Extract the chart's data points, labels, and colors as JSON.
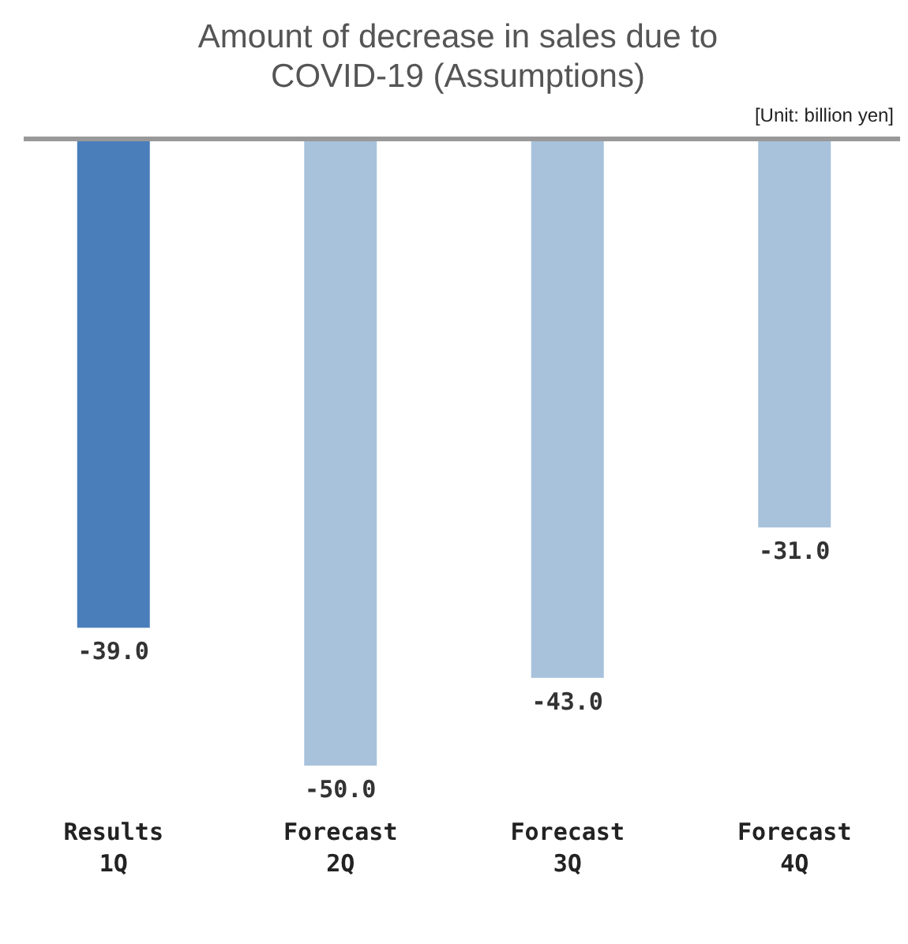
{
  "chart_data": {
    "type": "bar",
    "title": "Amount of decrease in sales due to COVID-19 (Assumptions)",
    "annotations": [
      "[Unit: billion yen]"
    ],
    "categories": [
      "Results\n1Q",
      "Forecast\n2Q",
      "Forecast\n3Q",
      "Forecast\n4Q"
    ],
    "values": [
      -39.0,
      -50.0,
      -43.0,
      -31.0
    ],
    "value_labels": [
      "-39.0",
      "-50.0",
      "-43.0",
      "-31.0"
    ],
    "colors": [
      "#4a7ebb",
      "#a8c2dc",
      "#a8c2dc",
      "#a8c2dc"
    ]
  }
}
